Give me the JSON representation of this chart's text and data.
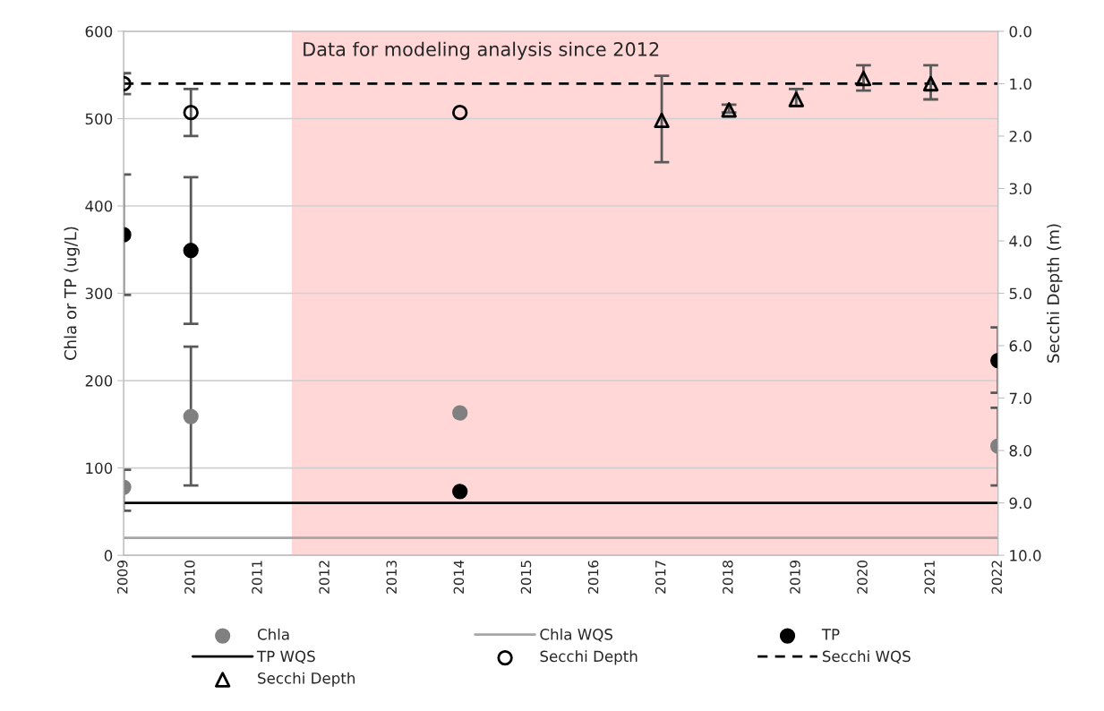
{
  "chart_data": {
    "type": "scatter",
    "xlabel": null,
    "ylabel": "Chla or TP (ug/L)",
    "y2label": "Secchi Depth (m)",
    "xlim": [
      2009,
      2022
    ],
    "xticks": [
      2009,
      2010,
      2011,
      2012,
      2013,
      2014,
      2015,
      2016,
      2017,
      2018,
      2019,
      2020,
      2021,
      2022
    ],
    "ylim": [
      0,
      600
    ],
    "yticks": [
      0,
      100,
      200,
      300,
      400,
      500,
      600
    ],
    "y2lim": [
      10,
      0
    ],
    "y2ticks": [
      {
        "value": 10,
        "label": "10.0"
      },
      {
        "value": 9,
        "label": "9.0"
      },
      {
        "value": 8,
        "label": "8.0"
      },
      {
        "value": 7,
        "label": "7.0"
      },
      {
        "value": 6,
        "label": "6.0"
      },
      {
        "value": 5,
        "label": "5.0"
      },
      {
        "value": 4,
        "label": "4.0"
      },
      {
        "value": 3,
        "label": "3.0"
      },
      {
        "value": 2,
        "label": "2.0"
      },
      {
        "value": 1,
        "label": "1.0"
      },
      {
        "value": 0,
        "label": "0.0"
      }
    ],
    "grid": "y",
    "legend": "bottom",
    "series": [
      {
        "name": "Chla",
        "color": "#808080",
        "marker": "circle",
        "x": [
          2009,
          2010,
          2014,
          2022
        ],
        "values": [
          78,
          159,
          163,
          125
        ],
        "errors": [
          [
            51,
            98
          ],
          [
            80,
            239
          ],
          null,
          [
            80,
            169
          ]
        ]
      },
      {
        "name": "TP",
        "color": "#000000",
        "marker": "circle",
        "x": [
          2009,
          2010,
          2014,
          2022
        ],
        "values": [
          367,
          349,
          73,
          223
        ],
        "errors": [
          [
            298,
            436
          ],
          [
            265,
            433
          ],
          null,
          [
            186,
            261
          ]
        ]
      },
      {
        "name": "Secchi Depth",
        "color": "#000000",
        "marker": "circle",
        "axis": "y2",
        "x": [
          2009,
          2010,
          2014
        ],
        "values": [
          1.0,
          1.55,
          1.55
        ],
        "errors": [
          [
            0.8,
            1.2
          ],
          [
            1.1,
            2.0
          ],
          null
        ]
      },
      {
        "name": "Secchi Depth",
        "color": "#000000",
        "marker": "triangle",
        "axis": "y2",
        "x": [
          2017,
          2018,
          2019,
          2020,
          2021
        ],
        "values": [
          1.7,
          1.5,
          1.3,
          0.9,
          1.0
        ],
        "errors": [
          [
            0.85,
            2.5
          ],
          [
            1.4,
            1.55
          ],
          [
            1.1,
            1.42
          ],
          [
            0.65,
            1.13
          ],
          [
            0.65,
            1.3
          ]
        ]
      }
    ],
    "ref_lines": [
      {
        "axis": "y",
        "value": 20,
        "label": "Chla WQS",
        "color": "#a6a6a6",
        "line_style": "solid"
      },
      {
        "axis": "y",
        "value": 60,
        "label": "TP WQS",
        "color": "#000000",
        "line_style": "solid"
      },
      {
        "axis": "y2",
        "value": 1.0,
        "label": "Secchi WQS",
        "color": "#000000",
        "line_style": "dashed"
      }
    ],
    "bands": [
      {
        "axis": "x",
        "from": 2011.5,
        "to": 2022,
        "label": "Data for modeling analysis since 2012",
        "color": "#ffd7d7"
      }
    ]
  }
}
